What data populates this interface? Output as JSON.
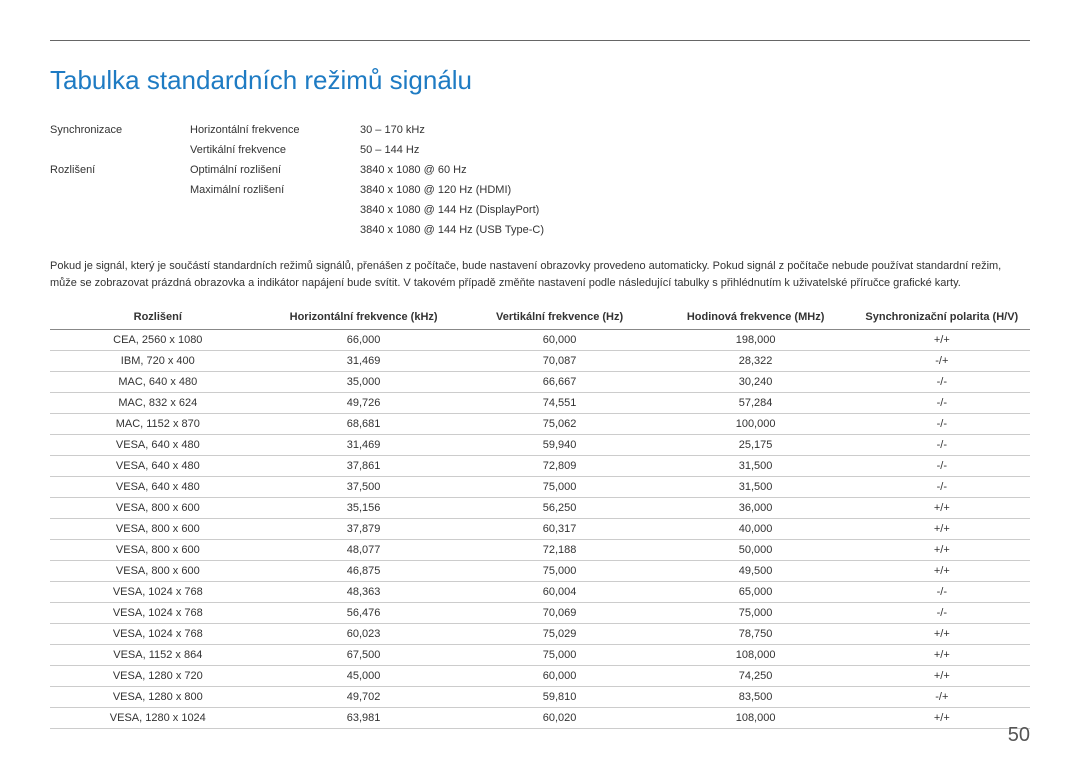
{
  "title": {
    "text": "Tabulka standardních režimů signálu",
    "color": "#1e7bc3",
    "fontsize": 26
  },
  "specs": {
    "rows": [
      {
        "c1": "Synchronizace",
        "c2": "Horizontální frekvence",
        "c3": "30 – 170 kHz"
      },
      {
        "c1": "",
        "c2": "Vertikální frekvence",
        "c3": "50 – 144 Hz"
      },
      {
        "c1": "Rozlišení",
        "c2": "Optimální rozlišení",
        "c3": "3840 x 1080 @ 60 Hz"
      },
      {
        "c1": "",
        "c2": "Maximální rozlišení",
        "c3": "3840 x 1080 @ 120 Hz (HDMI)"
      },
      {
        "c1": "",
        "c2": "",
        "c3": "3840 x 1080 @ 144 Hz (DisplayPort)"
      },
      {
        "c1": "",
        "c2": "",
        "c3": "3840 x 1080 @ 144 Hz (USB Type-C)"
      }
    ]
  },
  "paragraph": "Pokud je signál, který je součástí standardních režimů signálů, přenášen z počítače, bude nastavení obrazovky provedeno automaticky. Pokud signál z počítače nebude používat standardní režim, může se zobrazovat prázdná obrazovka a indikátor napájení bude svítit. V takovém případě změňte nastavení podle následující tabulky s přihlédnutím k uživatelské příručce grafické karty.",
  "table": {
    "columns": [
      "Rozlišení",
      "Horizontální frekvence (kHz)",
      "Vertikální frekvence (Hz)",
      "Hodinová frekvence (MHz)",
      "Synchronizační polarita (H/V)"
    ],
    "col_widths": [
      "22%",
      "20%",
      "20%",
      "20%",
      "18%"
    ],
    "rows": [
      [
        "CEA, 2560 x 1080",
        "66,000",
        "60,000",
        "198,000",
        "+/+"
      ],
      [
        "IBM, 720 x 400",
        "31,469",
        "70,087",
        "28,322",
        "-/+"
      ],
      [
        "MAC, 640 x 480",
        "35,000",
        "66,667",
        "30,240",
        "-/-"
      ],
      [
        "MAC, 832 x 624",
        "49,726",
        "74,551",
        "57,284",
        "-/-"
      ],
      [
        "MAC, 1152 x 870",
        "68,681",
        "75,062",
        "100,000",
        "-/-"
      ],
      [
        "VESA, 640 x 480",
        "31,469",
        "59,940",
        "25,175",
        "-/-"
      ],
      [
        "VESA, 640 x 480",
        "37,861",
        "72,809",
        "31,500",
        "-/-"
      ],
      [
        "VESA, 640 x 480",
        "37,500",
        "75,000",
        "31,500",
        "-/-"
      ],
      [
        "VESA, 800 x 600",
        "35,156",
        "56,250",
        "36,000",
        "+/+"
      ],
      [
        "VESA, 800 x 600",
        "37,879",
        "60,317",
        "40,000",
        "+/+"
      ],
      [
        "VESA, 800 x 600",
        "48,077",
        "72,188",
        "50,000",
        "+/+"
      ],
      [
        "VESA, 800 x 600",
        "46,875",
        "75,000",
        "49,500",
        "+/+"
      ],
      [
        "VESA, 1024 x 768",
        "48,363",
        "60,004",
        "65,000",
        "-/-"
      ],
      [
        "VESA, 1024 x 768",
        "56,476",
        "70,069",
        "75,000",
        "-/-"
      ],
      [
        "VESA, 1024 x 768",
        "60,023",
        "75,029",
        "78,750",
        "+/+"
      ],
      [
        "VESA, 1152 x 864",
        "67,500",
        "75,000",
        "108,000",
        "+/+"
      ],
      [
        "VESA, 1280 x 720",
        "45,000",
        "60,000",
        "74,250",
        "+/+"
      ],
      [
        "VESA, 1280 x 800",
        "49,702",
        "59,810",
        "83,500",
        "-/+"
      ],
      [
        "VESA, 1280 x 1024",
        "63,981",
        "60,020",
        "108,000",
        "+/+"
      ]
    ]
  },
  "page_number": "50"
}
